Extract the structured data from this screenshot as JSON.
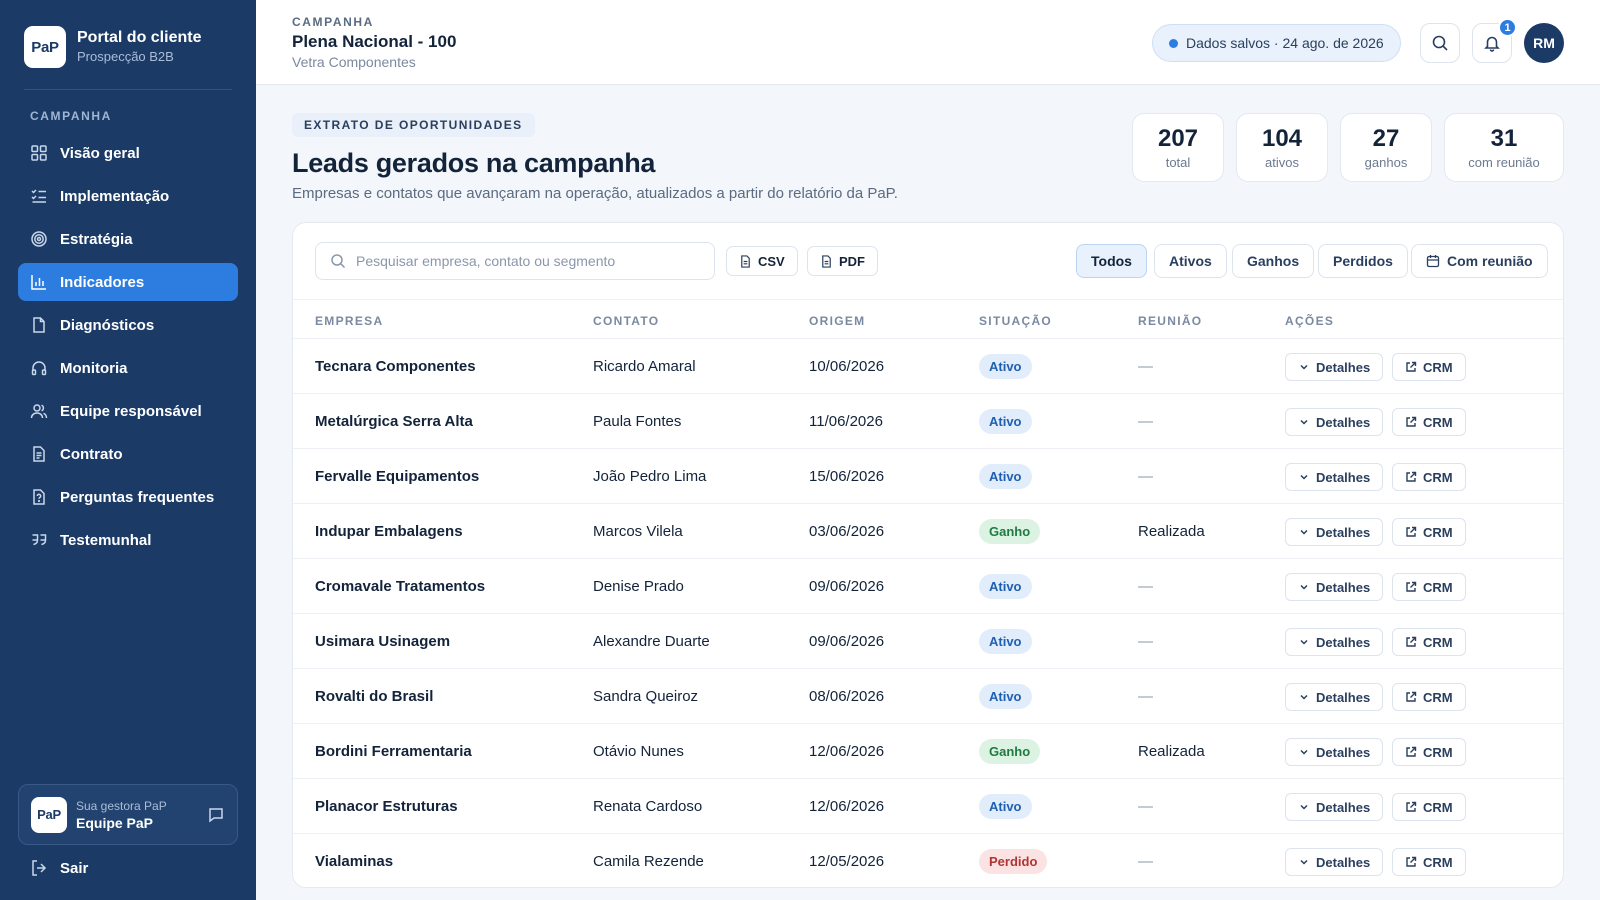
{
  "sidebar": {
    "logo_text": "PaP",
    "title": "Portal do cliente",
    "subtitle": "Prospecção B2B",
    "section_label": "CAMPANHA",
    "items": [
      {
        "label": "Visão geral",
        "icon": "grid-icon",
        "active": false
      },
      {
        "label": "Implementação",
        "icon": "checklist-icon",
        "active": false
      },
      {
        "label": "Estratégia",
        "icon": "target-icon",
        "active": false
      },
      {
        "label": "Indicadores",
        "icon": "bar-chart-icon",
        "active": true
      },
      {
        "label": "Diagnósticos",
        "icon": "document-icon",
        "active": false
      },
      {
        "label": "Monitoria",
        "icon": "headphones-icon",
        "active": false
      },
      {
        "label": "Equipe responsável",
        "icon": "users-icon",
        "active": false
      },
      {
        "label": "Contrato",
        "icon": "contract-icon",
        "active": false
      },
      {
        "label": "Perguntas frequentes",
        "icon": "faq-icon",
        "active": false
      },
      {
        "label": "Testemunhal",
        "icon": "quote-icon",
        "active": false
      }
    ],
    "manager": {
      "logo_text": "PaP",
      "label": "Sua gestora PaP",
      "name": "Equipe PaP"
    },
    "logout_label": "Sair"
  },
  "header": {
    "eyebrow": "CAMPANHA",
    "title": "Plena Nacional - 100",
    "subtitle": "Vetra Componentes",
    "saved_status": "Dados salvos · 24 ago. de 2026",
    "notification_count": "1",
    "avatar_initials": "RM"
  },
  "main": {
    "eyebrow": "EXTRATO DE OPORTUNIDADES",
    "title": "Leads gerados na campanha",
    "description": "Empresas e contatos que avançaram na operação, atualizados a partir do relatório da PaP.",
    "stats": [
      {
        "value": "207",
        "label": "total"
      },
      {
        "value": "104",
        "label": "ativos"
      },
      {
        "value": "27",
        "label": "ganhos"
      },
      {
        "value": "31",
        "label": "com reunião"
      }
    ]
  },
  "table": {
    "search_placeholder": "Pesquisar empresa, contato ou segmento",
    "export_csv": "CSV",
    "export_pdf": "PDF",
    "filters": [
      "Todos",
      "Ativos",
      "Ganhos",
      "Perdidos",
      "Com reunião"
    ],
    "active_filter": "Todos",
    "columns": [
      "EMPRESA",
      "CONTATO",
      "ORIGEM",
      "SITUAÇÃO",
      "REUNIÃO",
      "AÇÕES"
    ],
    "details_label": "Detalhes",
    "crm_label": "CRM",
    "rows": [
      {
        "company": "Tecnara Componentes",
        "contact": "Ricardo Amaral",
        "origin": "10/06/2026",
        "status": "Ativo",
        "meeting": "—"
      },
      {
        "company": "Metalúrgica Serra Alta",
        "contact": "Paula Fontes",
        "origin": "11/06/2026",
        "status": "Ativo",
        "meeting": "—"
      },
      {
        "company": "Fervalle Equipamentos",
        "contact": "João Pedro Lima",
        "origin": "15/06/2026",
        "status": "Ativo",
        "meeting": "—"
      },
      {
        "company": "Indupar Embalagens",
        "contact": "Marcos Vilela",
        "origin": "03/06/2026",
        "status": "Ganho",
        "meeting": "Realizada"
      },
      {
        "company": "Cromavale Tratamentos",
        "contact": "Denise Prado",
        "origin": "09/06/2026",
        "status": "Ativo",
        "meeting": "—"
      },
      {
        "company": "Usimara Usinagem",
        "contact": "Alexandre Duarte",
        "origin": "09/06/2026",
        "status": "Ativo",
        "meeting": "—"
      },
      {
        "company": "Rovalti do Brasil",
        "contact": "Sandra Queiroz",
        "origin": "08/06/2026",
        "status": "Ativo",
        "meeting": "—"
      },
      {
        "company": "Bordini Ferramentaria",
        "contact": "Otávio Nunes",
        "origin": "12/06/2026",
        "status": "Ganho",
        "meeting": "Realizada"
      },
      {
        "company": "Planacor Estruturas",
        "contact": "Renata Cardoso",
        "origin": "12/06/2026",
        "status": "Ativo",
        "meeting": "—"
      },
      {
        "company": "Vialaminas",
        "contact": "Camila Rezende",
        "origin": "12/05/2026",
        "status": "Perdido",
        "meeting": "—"
      }
    ]
  },
  "colors": {
    "sidebar_bg": "#1b3a66",
    "accent": "#2d7de0",
    "status_active": "#1f5fb2",
    "status_won": "#1f7a42",
    "status_lost": "#b33434"
  }
}
